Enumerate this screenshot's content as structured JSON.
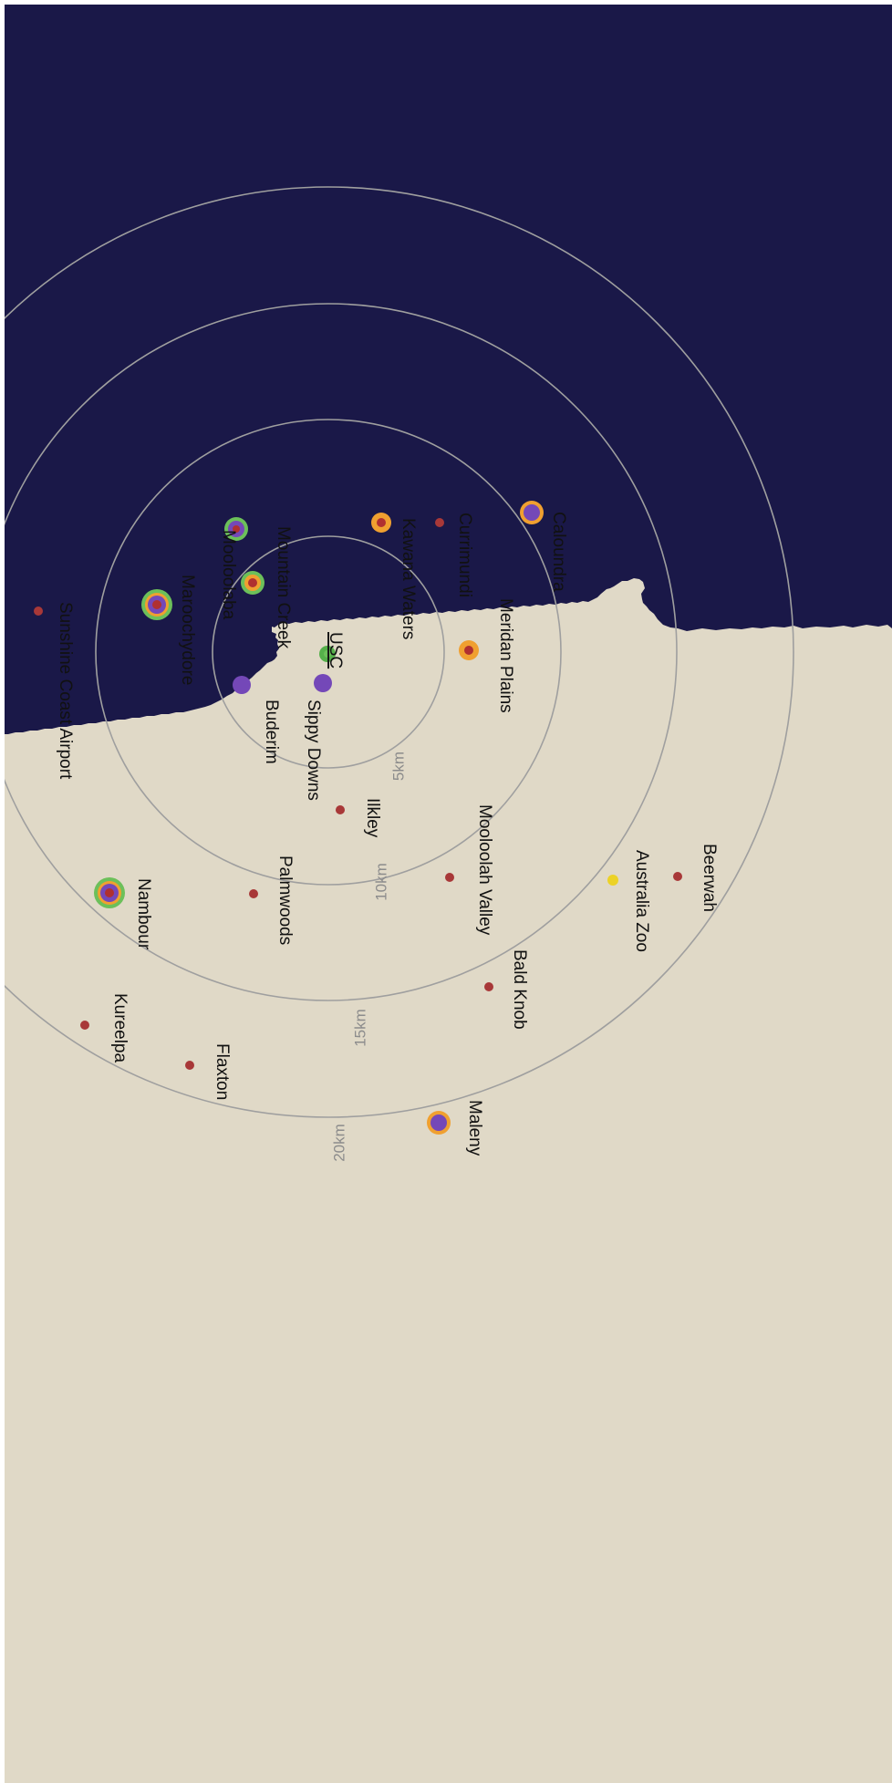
{
  "map": {
    "colors": {
      "ocean": "#1a1848",
      "land": "#e0d9c7",
      "ring": "#9f9f9f",
      "ring_label": "#8c8c8c",
      "town": "#a83838",
      "usc": "#55b04a",
      "attraction": "#ecd226",
      "halo_green": "#6cc05a",
      "halo_orange": "#f0a030",
      "halo_purple": "#7448b8",
      "halo_red": "#b03030"
    },
    "rings": [
      {
        "label": "5km"
      },
      {
        "label": "10km"
      },
      {
        "label": "15km"
      },
      {
        "label": "20km"
      }
    ],
    "places": [
      {
        "name": "USC",
        "type": "usc"
      },
      {
        "name": "Sippy Downs",
        "type": "purple"
      },
      {
        "name": "Buderim",
        "type": "purple"
      },
      {
        "name": "Mountain Creek",
        "type": "green-orange-red"
      },
      {
        "name": "Mooloolaba",
        "type": "green-purple"
      },
      {
        "name": "Maroochydore",
        "type": "green-orange-purple-red"
      },
      {
        "name": "Sunshine Coast Airport",
        "type": "red"
      },
      {
        "name": "Kawana Waters",
        "type": "orange-red"
      },
      {
        "name": "Currimundi",
        "type": "red"
      },
      {
        "name": "Caloundra",
        "type": "orange-purple"
      },
      {
        "name": "Meridan Plains",
        "type": "orange-red"
      },
      {
        "name": "Ilkley",
        "type": "red"
      },
      {
        "name": "Nambour",
        "type": "green-orange-purple-red"
      },
      {
        "name": "Palmwoods",
        "type": "red"
      },
      {
        "name": "Mooloolah Valley",
        "type": "red"
      },
      {
        "name": "Australia Zoo",
        "type": "yellow"
      },
      {
        "name": "Beerwah",
        "type": "red"
      },
      {
        "name": "Bald Knob",
        "type": "red"
      },
      {
        "name": "Kureelpa",
        "type": "red"
      },
      {
        "name": "Flaxton",
        "type": "red"
      },
      {
        "name": "Maleny",
        "type": "orange-purple"
      }
    ]
  }
}
